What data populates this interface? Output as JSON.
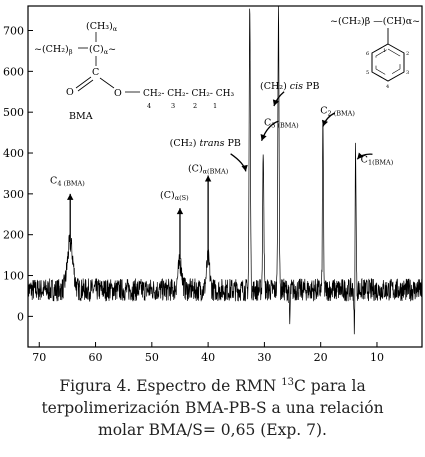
{
  "chart_data": {
    "type": "line",
    "title": "",
    "xlabel": "",
    "ylabel": "",
    "xlim": [
      72,
      2
    ],
    "ylim": [
      -75,
      760
    ],
    "x_ticks": [
      70,
      60,
      50,
      40,
      30,
      20,
      10
    ],
    "y_ticks": [
      0,
      100,
      200,
      300,
      400,
      500,
      600,
      700
    ],
    "baseline": 65,
    "noise_amplitude": 28,
    "peaks": [
      {
        "x": 64.5,
        "y": 180,
        "width": 0.7
      },
      {
        "x": 45.0,
        "y": 130,
        "width": 0.5
      },
      {
        "x": 40.0,
        "y": 140,
        "width": 0.4
      },
      {
        "x": 32.6,
        "y": 760,
        "width": 0.15
      },
      {
        "x": 30.2,
        "y": 410,
        "width": 0.15
      },
      {
        "x": 27.5,
        "y": 760,
        "width": 0.15
      },
      {
        "x": 19.6,
        "y": 490,
        "width": 0.12
      },
      {
        "x": 13.8,
        "y": 420,
        "width": 0.12
      }
    ],
    "dips": [
      {
        "x": 14.0,
        "y": -70
      },
      {
        "x": 25.5,
        "y": -20
      }
    ],
    "annotations": [
      {
        "text": "C",
        "sub": "4 (BMA)",
        "lx": 65,
        "ly": 325,
        "ax": 64.5,
        "ay1": 300,
        "ay2": 185,
        "curved": false
      },
      {
        "text": "(C)",
        "sub": "α(S)",
        "lx": 46,
        "ly": 290,
        "ax": 45,
        "ay1": 265,
        "ay2": 140,
        "curved": false
      },
      {
        "text": "(C)",
        "sub": "α(BMA)",
        "lx": 40,
        "ly": 355,
        "ax": 40,
        "ay1": 345,
        "ay2": 150,
        "curved": false
      },
      {
        "text": "(CH₂) ",
        "italic": "trans",
        "tail": " PB",
        "lx": 40.5,
        "ly": 417,
        "curved": true,
        "c": [
          36,
          398,
          33.6,
          375,
          33.3,
          355
        ]
      },
      {
        "text": "(CH₂) ",
        "italic": "cis",
        "tail": " PB",
        "lx": 25.5,
        "ly": 557,
        "curved": true,
        "c": [
          26.5,
          550,
          27.8,
          535,
          28.3,
          515
        ]
      },
      {
        "text": "C",
        "sub": "3 (BMA)",
        "lx": 27,
        "ly": 467,
        "curved": true,
        "c": [
          27.5,
          478,
          29.5,
          468,
          30.5,
          430
        ]
      },
      {
        "text": "C",
        "sub": "2 (BMA)",
        "lx": 17,
        "ly": 497,
        "curved": true,
        "c": [
          17.5,
          498,
          19,
          488,
          19.6,
          465
        ]
      },
      {
        "text": "C",
        "sub": "1(BMA)",
        "lx": 10,
        "ly": 377,
        "curved": true,
        "c": [
          10.8,
          397,
          12.6,
          399,
          13.5,
          385
        ]
      }
    ],
    "structures": {
      "bma": {
        "label": "BMA",
        "top_group": "(CH₃)",
        "top_sub": "α",
        "left_group": "~(CH₂)",
        "left_sub": "β",
        "center_group": "(C)",
        "center_sub": "α",
        "carbonyl_c": "C",
        "carbonyl_o": "O",
        "ester_o": "O",
        "chain": "CH₂- CH₂- CH₂- CH₃",
        "chain_numbers": [
          "4",
          "3",
          "2",
          "1"
        ]
      },
      "styrene": {
        "formula": "~(CH₂)β —(CH)α~",
        "ring_numbers": [
          "1",
          "2",
          "3",
          "4",
          "5",
          "6"
        ]
      }
    }
  },
  "caption": {
    "line1_pre": "Figura 4. Espectro de RMN ",
    "line1_sup": "13",
    "line1_post": "C para la",
    "line2": "terpolimerización BMA-PB-S a una relación",
    "line3": "molar BMA/S= 0,65 (Exp. 7)."
  }
}
